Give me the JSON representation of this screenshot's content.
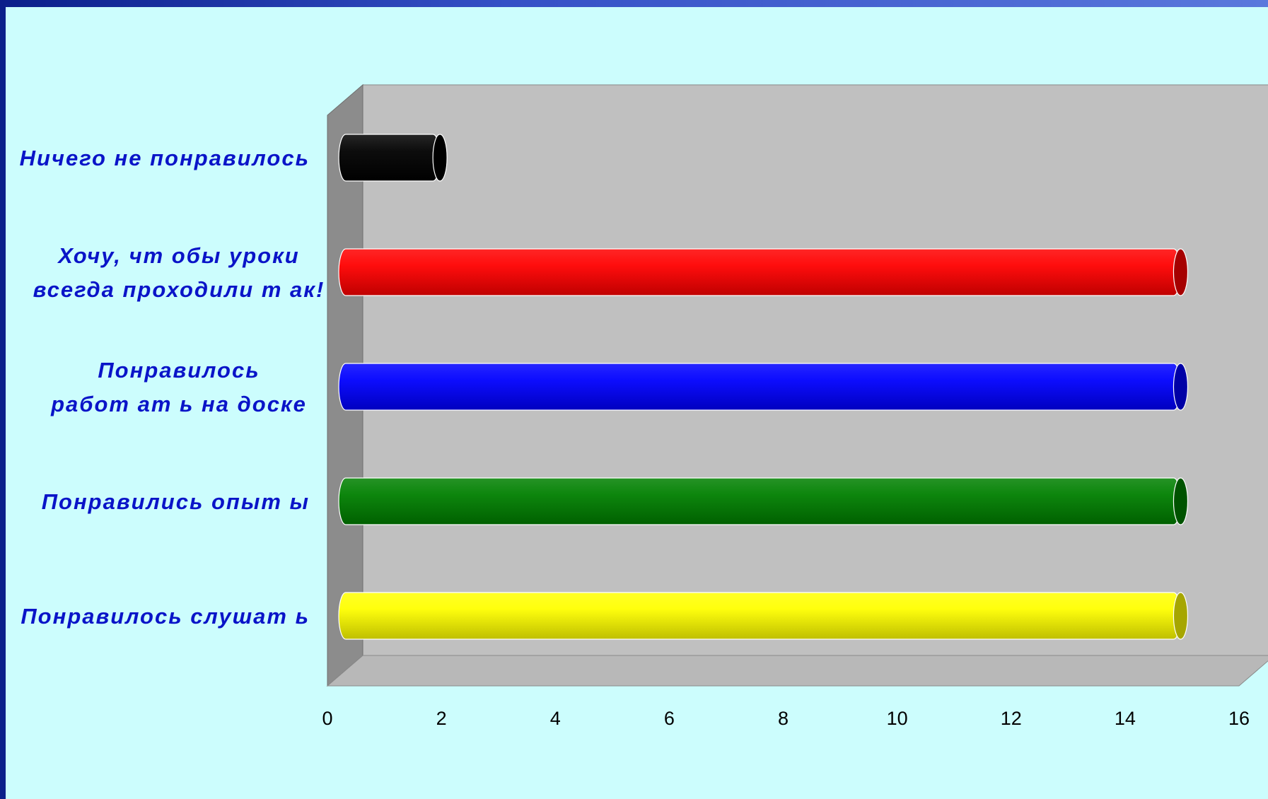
{
  "chart_data": {
    "type": "bar",
    "orientation": "horizontal",
    "style": "3d-cylinder",
    "categories": [
      [
        "Ничего не понравилось"
      ],
      [
        "Хочу, чт обы уроки",
        "всегда проходили т ак!"
      ],
      [
        "Понравилось",
        "работ ат ь на доске"
      ],
      [
        "Понравились опыт ы"
      ],
      [
        "Понравилось слушат ь"
      ]
    ],
    "values": [
      2,
      15,
      15,
      15,
      15
    ],
    "colors": [
      "#000000",
      "#ff0000",
      "#0000ff",
      "#008000",
      "#ffff00"
    ],
    "xlim": [
      0,
      16
    ],
    "xticks": [
      "0",
      "2",
      "4",
      "6",
      "8",
      "10",
      "12",
      "14",
      "16"
    ],
    "grid": false,
    "legend": "none",
    "title": "",
    "xlabel": "",
    "ylabel": "",
    "plot_background": "#c0c0c0",
    "label_color": "#0a14c8"
  }
}
